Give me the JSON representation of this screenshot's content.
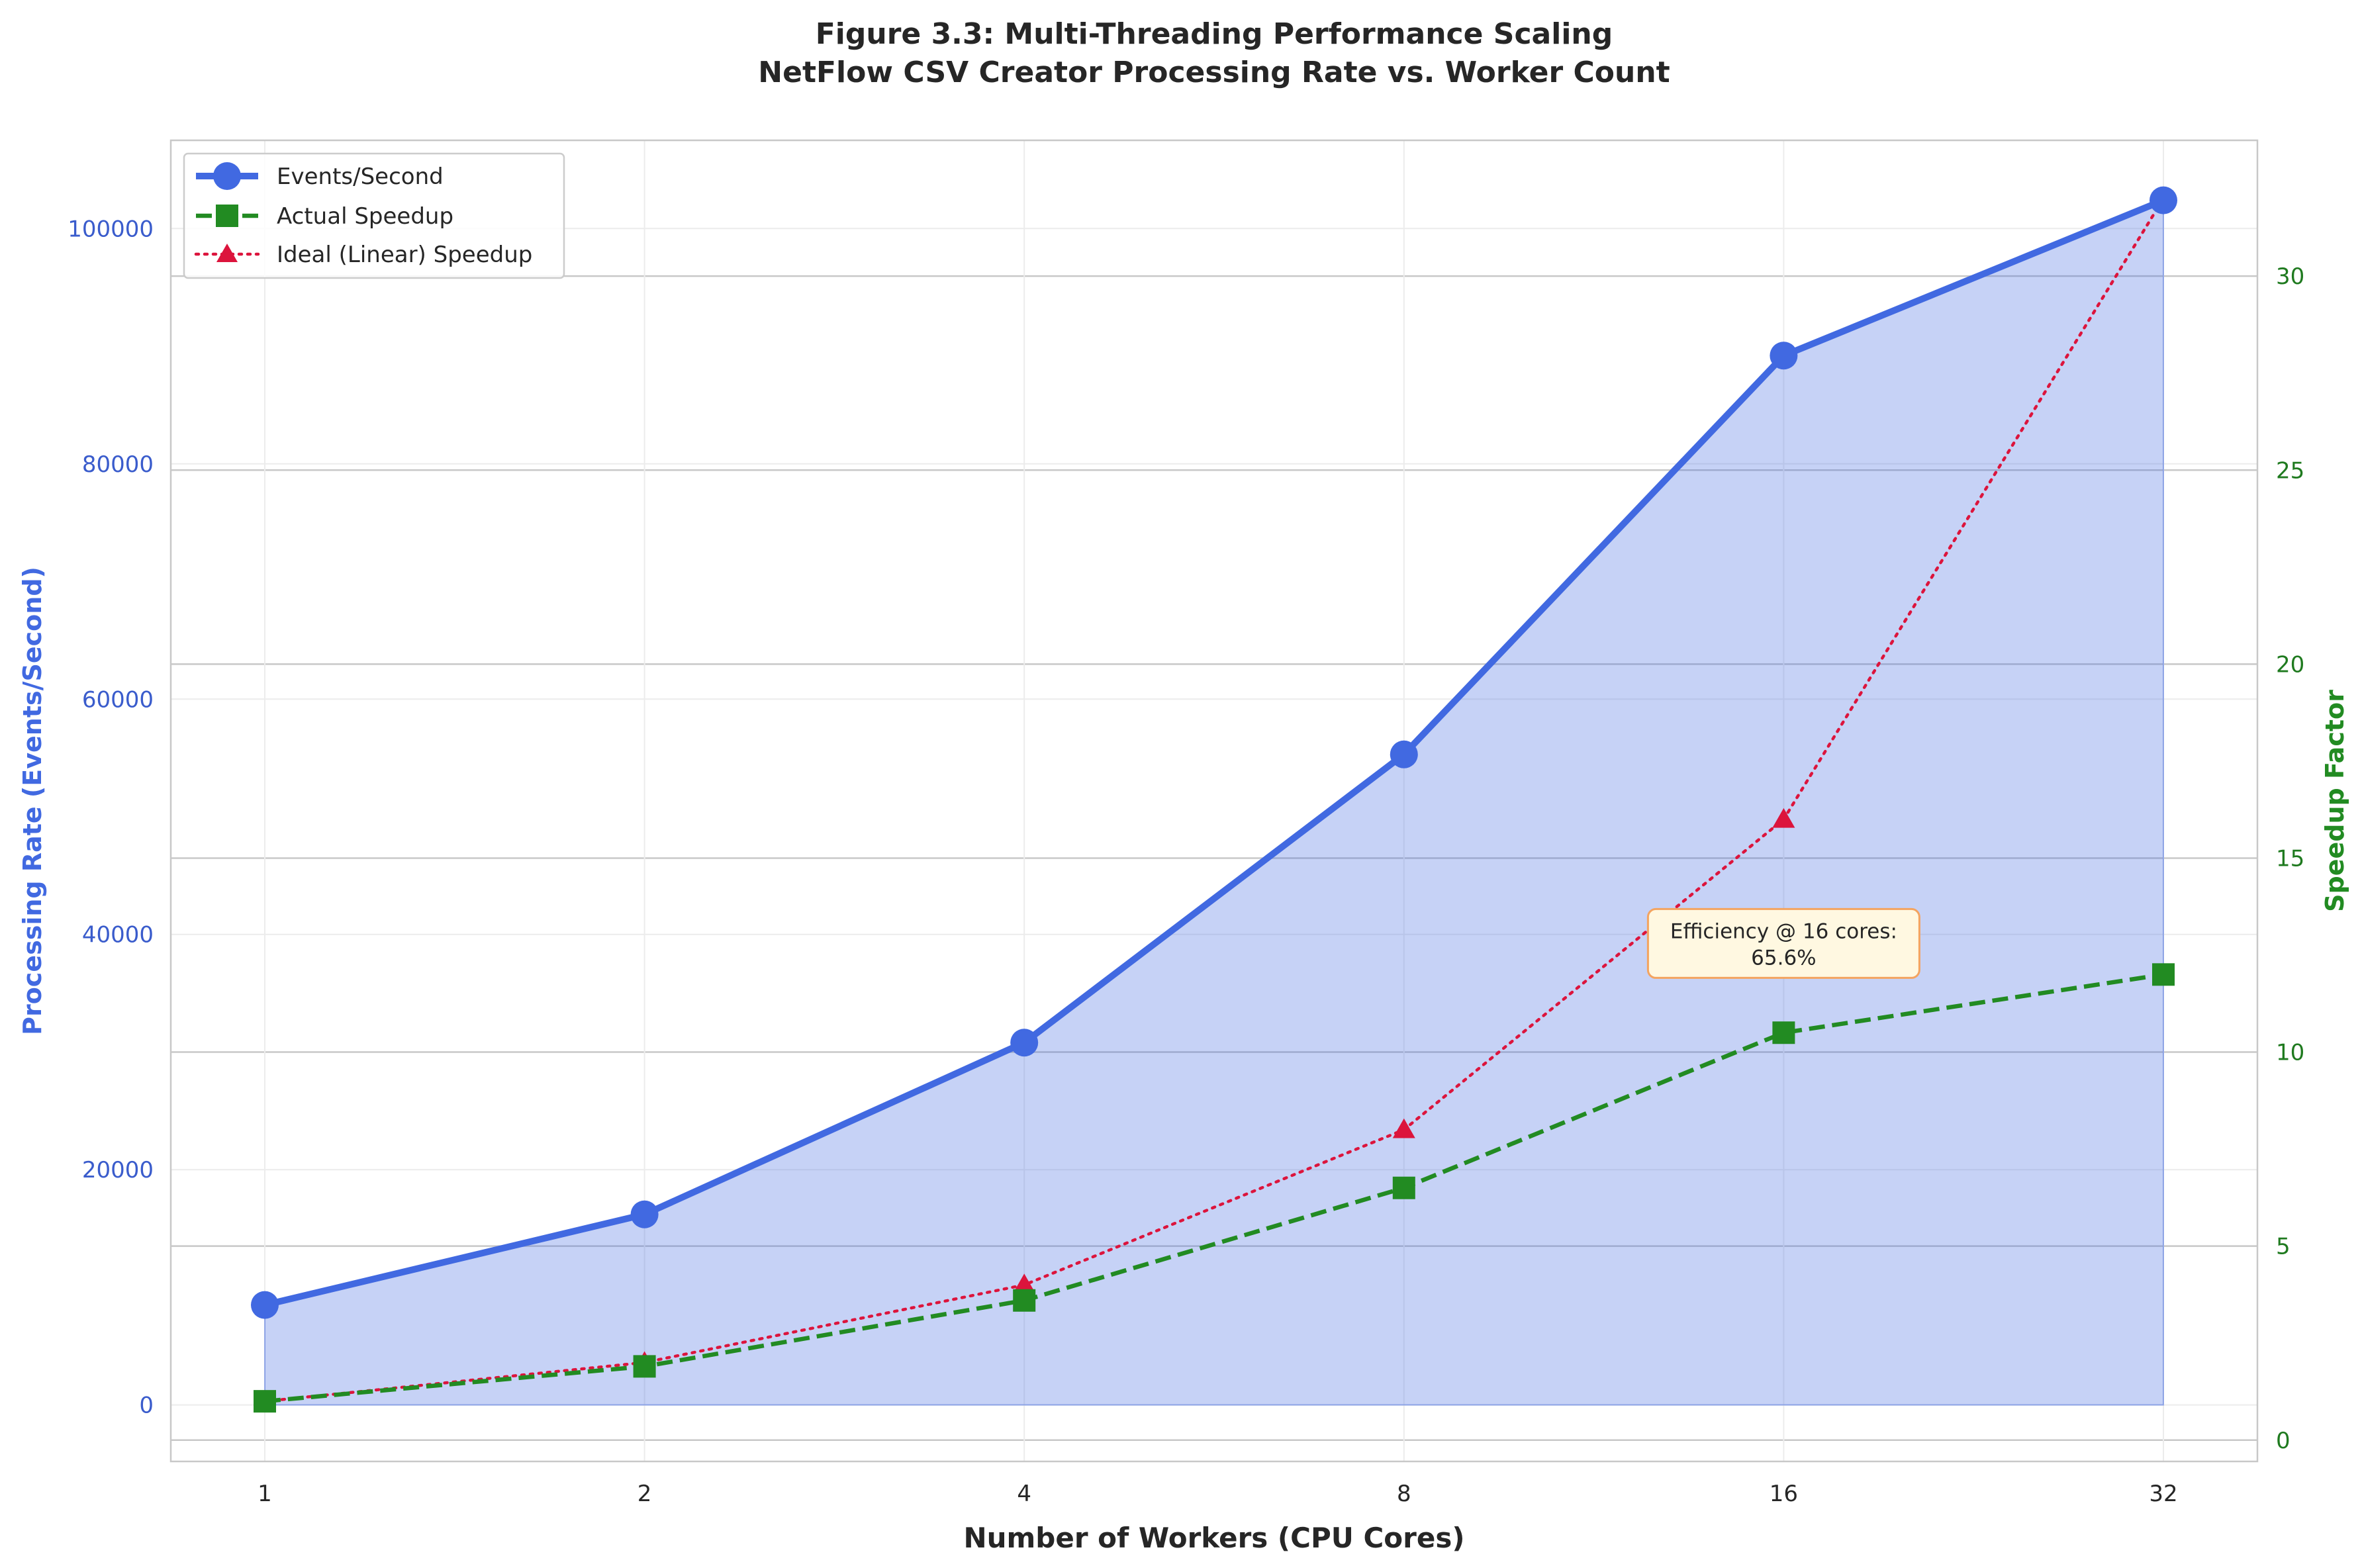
{
  "chart_data": {
    "type": "line",
    "title_line1": "Figure 3.3: Multi-Threading Performance Scaling",
    "title_line2": "NetFlow CSV Creator Processing Rate vs. Worker Count",
    "xlabel": "Number of Workers (CPU Cores)",
    "ylabel_left": "Processing Rate (Events/Second)",
    "ylabel_right": "Speedup Factor",
    "x_scale": "log2",
    "x": [
      1,
      2,
      4,
      8,
      16,
      32
    ],
    "x_tick_labels": [
      "1",
      "2",
      "4",
      "8",
      "16",
      "32"
    ],
    "y_left_ticks": [
      0,
      20000,
      40000,
      60000,
      80000,
      100000
    ],
    "y_left_tick_labels": [
      "0",
      "20000",
      "40000",
      "60000",
      "80000",
      "100000"
    ],
    "y_left_lim": [
      -4800,
      107500
    ],
    "y_right_ticks": [
      0,
      5,
      10,
      15,
      20,
      25,
      30
    ],
    "y_right_tick_labels": [
      "0",
      "5",
      "10",
      "15",
      "20",
      "25",
      "30"
    ],
    "y_right_lim": [
      -0.55,
      33.5
    ],
    "grid": true,
    "legend_position": "upper-left",
    "series": [
      {
        "name": "Events/Second",
        "axis": "left",
        "values": [
          8500,
          16200,
          30800,
          55300,
          89200,
          102400
        ],
        "color": "#4169e1",
        "linestyle": "solid",
        "marker": "circle",
        "fill": true,
        "fill_color": "#4169e1"
      },
      {
        "name": "Actual Speedup",
        "axis": "right",
        "values": [
          1.0,
          1.9,
          3.6,
          6.5,
          10.5,
          12.0
        ],
        "color": "#228b22",
        "linestyle": "dashed",
        "marker": "square"
      },
      {
        "name": "Ideal (Linear) Speedup",
        "axis": "right",
        "values": [
          1,
          2,
          4,
          8,
          16,
          32
        ],
        "color": "#dc143c",
        "linestyle": "dotted",
        "marker": "triangle"
      }
    ],
    "annotation": {
      "line1": "Efficiency @ 16 cores:",
      "line2": "65.6%",
      "x": 16,
      "y_right": 12.8
    }
  }
}
